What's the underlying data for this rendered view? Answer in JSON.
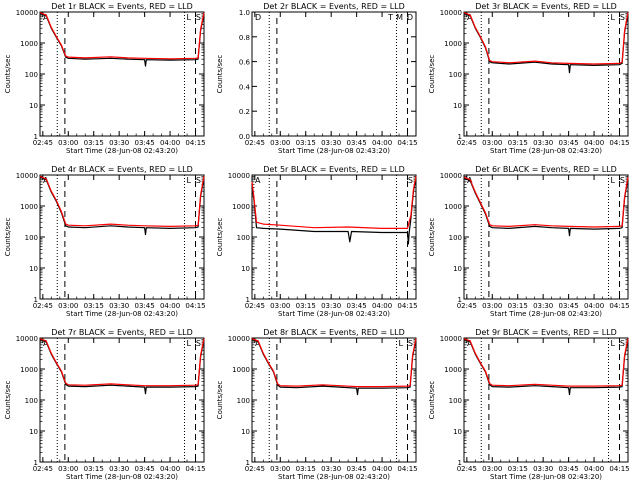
{
  "figure": {
    "xlabel": "Start Time (28-Jun-08 02:43:20)",
    "ylabel": "Counts/sec",
    "x_ticks": [
      "02:45",
      "03:00",
      "03:15",
      "03:30",
      "03:45",
      "04:00",
      "04:15"
    ],
    "colors": {
      "events": "#000000",
      "lld": "#ff0000"
    }
  },
  "chart_data": [
    {
      "type": "line",
      "title": "Det 1r BLACK = Events, RED = LLD",
      "scale": "log",
      "y_ticks": [
        "1",
        "10",
        "100",
        "1000",
        "10000"
      ],
      "ylim": [
        1,
        10000
      ],
      "xlim": [
        "02:43:20",
        "04:20:00"
      ],
      "series": [
        {
          "name": "Events",
          "color": "#000000",
          "x": [
            "02:43:20",
            "02:47:00",
            "02:50:00",
            "02:53:00",
            "02:56:00",
            "02:58:30",
            "03:00:00",
            "03:10:00",
            "03:25:00",
            "03:35:00",
            "03:45:00",
            "03:45:30",
            "03:46:00",
            "04:00:00",
            "04:15:00",
            "04:16:30",
            "04:18:00",
            "04:20:00"
          ],
          "values": [
            9000,
            7500,
            3000,
            1500,
            800,
            350,
            320,
            300,
            320,
            300,
            290,
            180,
            290,
            280,
            290,
            300,
            2500,
            9000
          ]
        },
        {
          "name": "LLD",
          "color": "#ff0000",
          "x": [
            "02:43:20",
            "02:47:00",
            "02:50:00",
            "02:53:00",
            "02:56:00",
            "02:58:30",
            "03:00:00",
            "03:10:00",
            "03:25:00",
            "03:35:00",
            "03:45:00",
            "04:00:00",
            "04:15:00",
            "04:16:30",
            "04:18:00",
            "04:20:00"
          ],
          "values": [
            9500,
            8000,
            3200,
            1600,
            850,
            380,
            350,
            330,
            360,
            330,
            320,
            310,
            320,
            330,
            2800,
            9500
          ]
        }
      ],
      "markers": {
        "dotted": [
          "02:53:30",
          "04:08:30"
        ],
        "dashed": [
          "02:58:00",
          "04:15:00"
        ]
      },
      "corner_labels": [
        "A",
        "L",
        "S"
      ]
    },
    {
      "type": "line",
      "title": "Det 2r BLACK = Events, RED = LLD",
      "scale": "linear",
      "y_ticks": [
        "1.0",
        "0.8",
        "0.6",
        "0.4",
        "0.2",
        "0.0"
      ],
      "ylim": [
        0,
        1
      ],
      "xlim": [
        "02:43:20",
        "04:20:00"
      ],
      "series": [],
      "markers": {
        "dotted": [
          "02:53:30",
          "04:08:30"
        ],
        "dashed": [
          "02:58:00",
          "04:15:00"
        ]
      },
      "corner_labels": [
        "D",
        "T",
        "M",
        "D"
      ]
    },
    {
      "type": "line",
      "title": "Det 3r BLACK = Events, RED = LLD",
      "scale": "log",
      "y_ticks": [
        "1",
        "10",
        "100",
        "1000",
        "10000"
      ],
      "ylim": [
        1,
        10000
      ],
      "xlim": [
        "02:43:20",
        "04:20:00"
      ],
      "series": [
        {
          "name": "Events",
          "color": "#000000",
          "x": [
            "02:43:20",
            "02:47:00",
            "02:50:00",
            "02:53:00",
            "02:56:00",
            "02:58:30",
            "03:00:00",
            "03:10:00",
            "03:25:00",
            "03:35:00",
            "03:45:00",
            "03:45:30",
            "03:46:00",
            "04:00:00",
            "04:15:00",
            "04:16:30",
            "04:18:00",
            "04:20:00"
          ],
          "values": [
            9000,
            7500,
            3000,
            1500,
            700,
            250,
            230,
            210,
            240,
            210,
            200,
            110,
            200,
            190,
            200,
            220,
            2200,
            9000
          ]
        },
        {
          "name": "LLD",
          "color": "#ff0000",
          "x": [
            "02:43:20",
            "02:47:00",
            "02:50:00",
            "02:53:00",
            "02:56:00",
            "02:58:30",
            "03:00:00",
            "03:10:00",
            "03:25:00",
            "03:35:00",
            "03:45:00",
            "04:00:00",
            "04:15:00",
            "04:16:30",
            "04:18:00",
            "04:20:00"
          ],
          "values": [
            9500,
            8000,
            3200,
            1600,
            750,
            270,
            250,
            230,
            260,
            230,
            220,
            210,
            220,
            240,
            2500,
            9500
          ]
        }
      ],
      "markers": {
        "dotted": [
          "02:53:30",
          "04:08:30"
        ],
        "dashed": [
          "02:58:00",
          "04:15:00"
        ]
      },
      "corner_labels": [
        "A",
        "L",
        "S"
      ]
    },
    {
      "type": "line",
      "title": "Det 4r BLACK = Events, RED = LLD",
      "scale": "log",
      "y_ticks": [
        "1",
        "10",
        "100",
        "1000",
        "10000"
      ],
      "ylim": [
        1,
        10000
      ],
      "xlim": [
        "02:43:20",
        "04:20:00"
      ],
      "series": [
        {
          "name": "Events",
          "color": "#000000",
          "x": [
            "02:43:20",
            "02:47:00",
            "02:50:00",
            "02:53:00",
            "02:56:00",
            "02:58:30",
            "03:00:00",
            "03:10:00",
            "03:25:00",
            "03:35:00",
            "03:45:00",
            "03:45:30",
            "03:46:00",
            "04:00:00",
            "04:15:00",
            "04:16:30",
            "04:18:00",
            "04:20:00"
          ],
          "values": [
            8500,
            7000,
            2800,
            1400,
            600,
            230,
            210,
            200,
            230,
            210,
            200,
            120,
            200,
            190,
            200,
            210,
            2000,
            8500
          ]
        },
        {
          "name": "LLD",
          "color": "#ff0000",
          "x": [
            "02:43:20",
            "02:47:00",
            "02:50:00",
            "02:53:00",
            "02:56:00",
            "02:58:30",
            "03:00:00",
            "03:10:00",
            "03:25:00",
            "03:35:00",
            "03:45:00",
            "04:00:00",
            "04:15:00",
            "04:16:30",
            "04:18:00",
            "04:20:00"
          ],
          "values": [
            9000,
            7500,
            3000,
            1500,
            650,
            260,
            240,
            230,
            260,
            240,
            230,
            220,
            230,
            240,
            2300,
            9000
          ]
        }
      ],
      "markers": {
        "dotted": [
          "02:53:30",
          "04:08:30"
        ],
        "dashed": [
          "02:58:00",
          "04:15:00"
        ]
      },
      "corner_labels": [
        "A",
        "L",
        "S"
      ]
    },
    {
      "type": "line",
      "title": "Det 5r BLACK = Events, RED = LLD",
      "scale": "log",
      "y_ticks": [
        "1",
        "10",
        "100",
        "1000",
        "10000"
      ],
      "ylim": [
        1,
        10000
      ],
      "xlim": [
        "02:43:20",
        "04:20:00"
      ],
      "series": [
        {
          "name": "Events",
          "color": "#000000",
          "x": [
            "02:43:20",
            "02:44:30",
            "02:46:00",
            "02:50:00",
            "03:00:00",
            "03:20:00",
            "03:40:00",
            "03:41:00",
            "03:42:00",
            "04:00:00",
            "04:10:00",
            "04:15:00",
            "04:15:30",
            "04:16:00",
            "04:17:00",
            "04:18:30",
            "04:20:00"
          ],
          "values": [
            5000,
            1500,
            200,
            190,
            180,
            150,
            150,
            70,
            150,
            140,
            140,
            140,
            60,
            140,
            400,
            3000,
            8000
          ]
        },
        {
          "name": "LLD",
          "color": "#ff0000",
          "x": [
            "02:43:20",
            "02:44:30",
            "02:46:00",
            "02:50:00",
            "03:00:00",
            "03:20:00",
            "03:40:00",
            "04:00:00",
            "04:10:00",
            "04:15:00",
            "04:17:00",
            "04:18:30",
            "04:20:00"
          ],
          "values": [
            6000,
            1800,
            300,
            260,
            240,
            200,
            210,
            190,
            190,
            190,
            500,
            3500,
            9000
          ]
        }
      ],
      "markers": {
        "dotted": [
          "02:53:30",
          "04:08:30"
        ],
        "dashed": [
          "02:58:00",
          "04:15:00"
        ]
      },
      "corner_labels": [
        "A",
        "S"
      ]
    },
    {
      "type": "line",
      "title": "Det 6r BLACK = Events, RED = LLD",
      "scale": "log",
      "y_ticks": [
        "1",
        "10",
        "100",
        "1000",
        "10000"
      ],
      "ylim": [
        1,
        10000
      ],
      "xlim": [
        "02:43:20",
        "04:20:00"
      ],
      "series": [
        {
          "name": "Events",
          "color": "#000000",
          "x": [
            "02:43:20",
            "02:47:00",
            "02:50:00",
            "02:53:00",
            "02:56:00",
            "02:58:30",
            "03:00:00",
            "03:10:00",
            "03:25:00",
            "03:35:00",
            "03:45:00",
            "03:45:30",
            "03:46:00",
            "04:00:00",
            "04:15:00",
            "04:16:30",
            "04:18:00",
            "04:20:00"
          ],
          "values": [
            8000,
            6500,
            2600,
            1200,
            550,
            220,
            200,
            190,
            220,
            200,
            190,
            110,
            190,
            180,
            190,
            200,
            1800,
            8000
          ]
        },
        {
          "name": "LLD",
          "color": "#ff0000",
          "x": [
            "02:43:20",
            "02:47:00",
            "02:50:00",
            "02:53:00",
            "02:56:00",
            "02:58:30",
            "03:00:00",
            "03:10:00",
            "03:25:00",
            "03:35:00",
            "03:45:00",
            "04:00:00",
            "04:15:00",
            "04:16:30",
            "04:18:00",
            "04:20:00"
          ],
          "values": [
            8500,
            7000,
            2800,
            1300,
            600,
            250,
            230,
            220,
            250,
            230,
            220,
            210,
            220,
            230,
            2000,
            8500
          ]
        }
      ],
      "markers": {
        "dotted": [
          "02:53:30",
          "04:08:30"
        ],
        "dashed": [
          "02:58:00",
          "04:15:00"
        ]
      },
      "corner_labels": [
        "A",
        "L",
        "S"
      ]
    },
    {
      "type": "line",
      "title": "Det 7r BLACK = Events, RED = LLD",
      "scale": "log",
      "y_ticks": [
        "1",
        "10",
        "100",
        "1000",
        "10000"
      ],
      "ylim": [
        1,
        10000
      ],
      "xlim": [
        "02:43:20",
        "04:20:00"
      ],
      "series": [
        {
          "name": "Events",
          "color": "#000000",
          "x": [
            "02:43:20",
            "02:47:00",
            "02:50:00",
            "02:53:00",
            "02:56:00",
            "02:58:30",
            "03:00:00",
            "03:10:00",
            "03:25:00",
            "03:35:00",
            "03:45:00",
            "03:45:30",
            "03:46:00",
            "04:00:00",
            "04:15:00",
            "04:16:30",
            "04:18:00",
            "04:20:00"
          ],
          "values": [
            9000,
            7500,
            3000,
            1500,
            800,
            320,
            280,
            270,
            300,
            280,
            260,
            160,
            260,
            260,
            270,
            280,
            2500,
            9000
          ]
        },
        {
          "name": "LLD",
          "color": "#ff0000",
          "x": [
            "02:43:20",
            "02:47:00",
            "02:50:00",
            "02:53:00",
            "02:56:00",
            "02:58:30",
            "03:00:00",
            "03:10:00",
            "03:25:00",
            "03:35:00",
            "03:45:00",
            "04:00:00",
            "04:15:00",
            "04:16:30",
            "04:18:00",
            "04:20:00"
          ],
          "values": [
            9500,
            8000,
            3200,
            1600,
            850,
            350,
            310,
            300,
            330,
            310,
            290,
            290,
            300,
            310,
            2800,
            9500
          ]
        }
      ],
      "markers": {
        "dotted": [
          "02:53:30",
          "04:08:30"
        ],
        "dashed": [
          "02:58:00",
          "04:15:00"
        ]
      },
      "corner_labels": [
        "A",
        "L",
        "S"
      ]
    },
    {
      "type": "line",
      "title": "Det 8r BLACK = Events, RED = LLD",
      "scale": "log",
      "y_ticks": [
        "1",
        "10",
        "100",
        "1000",
        "10000"
      ],
      "ylim": [
        1,
        10000
      ],
      "xlim": [
        "02:43:20",
        "04:20:00"
      ],
      "series": [
        {
          "name": "Events",
          "color": "#000000",
          "x": [
            "02:43:20",
            "02:47:00",
            "02:50:00",
            "02:53:00",
            "02:56:00",
            "02:58:30",
            "03:00:00",
            "03:10:00",
            "03:25:00",
            "03:35:00",
            "03:45:00",
            "03:45:30",
            "03:46:00",
            "04:00:00",
            "04:15:00",
            "04:16:30",
            "04:18:00",
            "04:20:00"
          ],
          "values": [
            9000,
            7500,
            3000,
            1500,
            800,
            300,
            260,
            250,
            280,
            260,
            240,
            150,
            240,
            240,
            250,
            260,
            2500,
            9000
          ]
        },
        {
          "name": "LLD",
          "color": "#ff0000",
          "x": [
            "02:43:20",
            "02:47:00",
            "02:50:00",
            "02:53:00",
            "02:56:00",
            "02:58:30",
            "03:00:00",
            "03:10:00",
            "03:25:00",
            "03:35:00",
            "03:45:00",
            "04:00:00",
            "04:15:00",
            "04:16:30",
            "04:18:00",
            "04:20:00"
          ],
          "values": [
            9500,
            8000,
            3200,
            1600,
            850,
            330,
            290,
            280,
            310,
            290,
            270,
            270,
            280,
            290,
            2800,
            9500
          ]
        }
      ],
      "markers": {
        "dotted": [
          "02:53:30",
          "04:08:30"
        ],
        "dashed": [
          "02:58:00",
          "04:15:00"
        ]
      },
      "corner_labels": [
        "A",
        "L",
        "S"
      ]
    },
    {
      "type": "line",
      "title": "Det 9r BLACK = Events, RED = LLD",
      "scale": "log",
      "y_ticks": [
        "1",
        "10",
        "100",
        "1000",
        "10000"
      ],
      "ylim": [
        1,
        10000
      ],
      "xlim": [
        "02:43:20",
        "04:20:00"
      ],
      "series": [
        {
          "name": "Events",
          "color": "#000000",
          "x": [
            "02:43:20",
            "02:47:00",
            "02:50:00",
            "02:53:00",
            "02:56:00",
            "02:58:30",
            "03:00:00",
            "03:10:00",
            "03:25:00",
            "03:35:00",
            "03:45:00",
            "03:45:30",
            "03:46:00",
            "04:00:00",
            "04:15:00",
            "04:16:30",
            "04:18:00",
            "04:20:00"
          ],
          "values": [
            9000,
            7500,
            3000,
            1500,
            800,
            310,
            270,
            260,
            290,
            270,
            250,
            150,
            250,
            250,
            260,
            270,
            2500,
            9000
          ]
        },
        {
          "name": "LLD",
          "color": "#ff0000",
          "x": [
            "02:43:20",
            "02:47:00",
            "02:50:00",
            "02:53:00",
            "02:56:00",
            "02:58:30",
            "03:00:00",
            "03:10:00",
            "03:25:00",
            "03:35:00",
            "03:45:00",
            "04:00:00",
            "04:15:00",
            "04:16:30",
            "04:18:00",
            "04:20:00"
          ],
          "values": [
            9500,
            8000,
            3200,
            1600,
            850,
            340,
            300,
            290,
            320,
            300,
            280,
            280,
            290,
            300,
            2800,
            9500
          ]
        }
      ],
      "markers": {
        "dotted": [
          "02:53:30",
          "04:08:30"
        ],
        "dashed": [
          "02:58:00",
          "04:15:00"
        ]
      },
      "corner_labels": [
        "A",
        "L",
        "S"
      ]
    }
  ]
}
